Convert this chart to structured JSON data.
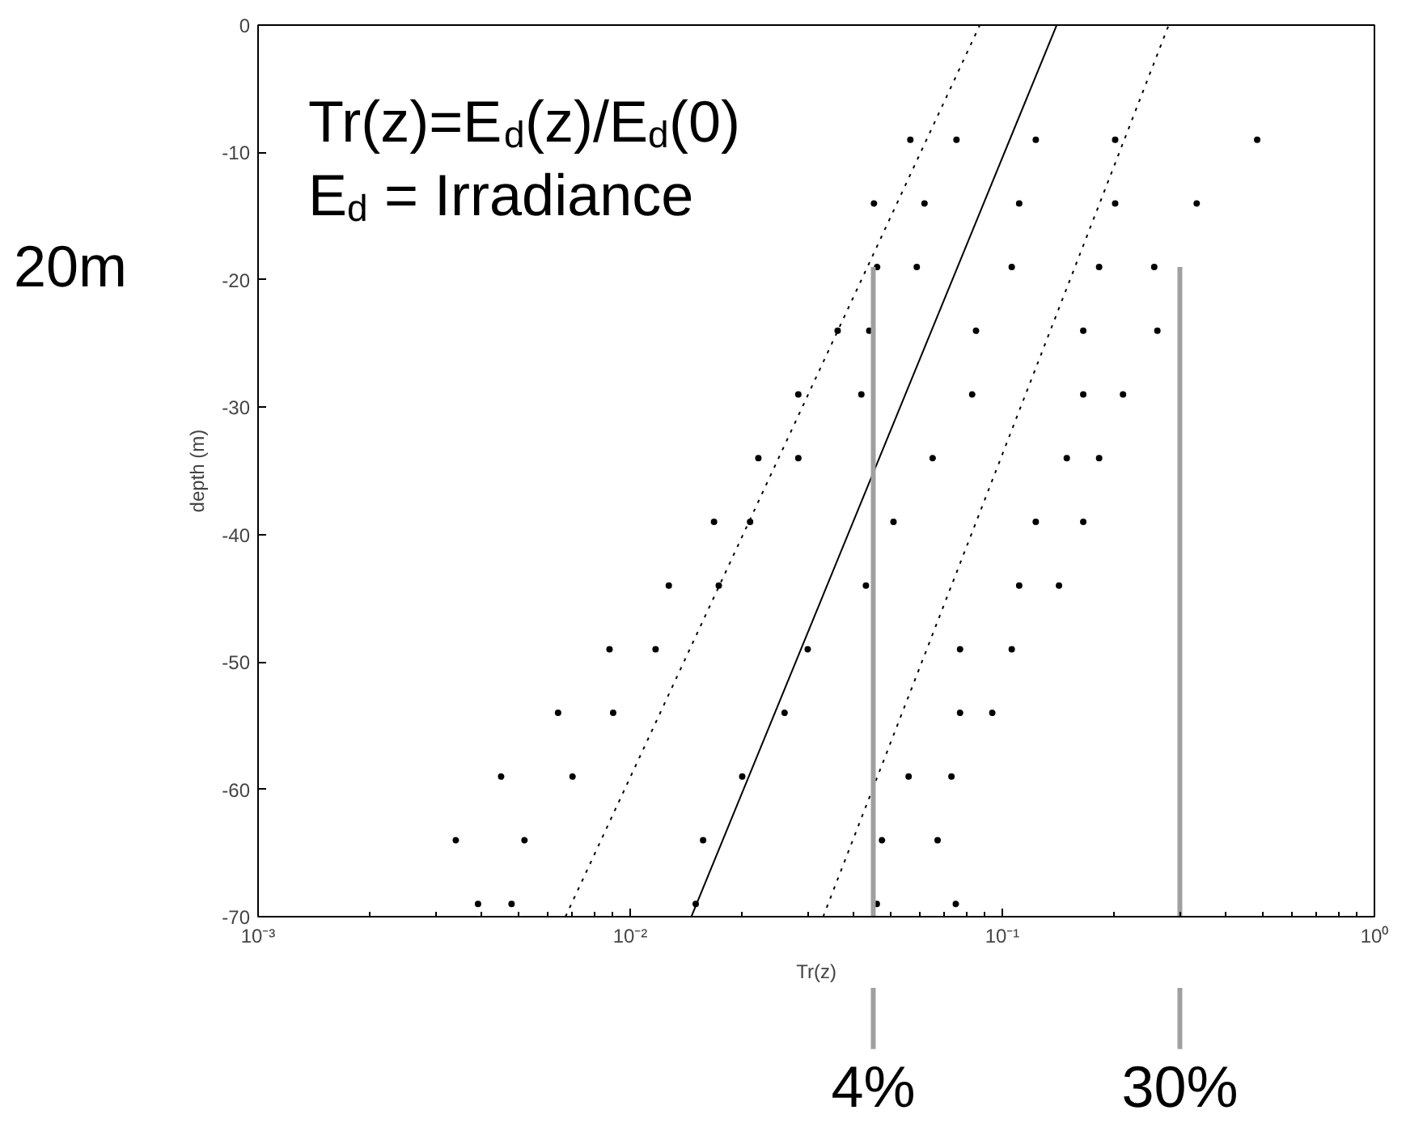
{
  "chart_data": {
    "type": "scatter",
    "xlabel": "Tr(z)",
    "ylabel": "depth (m)",
    "log": "x",
    "marker": "circle",
    "grid": false,
    "legend": "bottom",
    "xlim": [
      0.001,
      1
    ],
    "ylim": [
      -70,
      0
    ],
    "xticks": [
      {
        "value": 0.001,
        "label": "10⁻³"
      },
      {
        "value": 0.01,
        "label": "10⁻²"
      },
      {
        "value": 0.1,
        "label": "10⁻¹"
      },
      {
        "value": 1,
        "label": "10⁰"
      }
    ],
    "yticks": [
      -70,
      -60,
      -50,
      -40,
      -30,
      -20,
      -10,
      0
    ],
    "annotations": [
      "Tr(z)=E$_{d}$(z)/E$_{d}$(0)",
      "E$_{d}$ = Irradiance",
      "20m"
    ],
    "series": [
      {
        "color": "#000000",
        "x": [
          0.0566,
          0.0753,
          0.123,
          0.201,
          0.484,
          0.0452,
          0.0618,
          0.111,
          0.201,
          0.333,
          0.0461,
          0.0589,
          0.106,
          0.182,
          0.256,
          0.0361,
          0.0439,
          0.085,
          0.165,
          0.261,
          0.0283,
          0.0418,
          0.083,
          0.165,
          0.211,
          0.0221,
          0.0283,
          0.065,
          0.149,
          0.182,
          0.0168,
          0.021,
          0.051,
          0.123,
          0.165,
          0.0127,
          0.0173,
          0.043,
          0.111,
          0.142,
          0.0088,
          0.0117,
          0.03,
          0.077,
          0.106,
          0.0064,
          0.009,
          0.026,
          0.077,
          0.094,
          0.0045,
          0.007,
          0.02,
          0.056,
          0.073,
          0.0034,
          0.0052,
          0.0157,
          0.0475,
          0.067,
          0.0039,
          0.0048,
          0.015,
          0.046,
          0.075
        ],
        "values": [
          -9,
          -9,
          -9,
          -9,
          -9,
          -14,
          -14,
          -14,
          -14,
          -14,
          -19,
          -19,
          -19,
          -19,
          -19,
          -24,
          -24,
          -24,
          -24,
          -24,
          -29,
          -29,
          -29,
          -29,
          -29,
          -34,
          -34,
          -34,
          -34,
          -34,
          -39,
          -39,
          -39,
          -39,
          -39,
          -44,
          -44,
          -44,
          -44,
          -44,
          -49,
          -49,
          -49,
          -49,
          -49,
          -54,
          -54,
          -54,
          -54,
          -54,
          -59,
          -59,
          -59,
          -59,
          -59,
          -64,
          -64,
          -64,
          -64,
          -64,
          -69,
          -69,
          -69,
          -69,
          -69
        ]
      },
      {
        "type": "line",
        "marker": "none",
        "line_style": "solid",
        "color": "#000000",
        "x": [
          0.0146,
          0.14
        ],
        "values": [
          -70,
          0
        ]
      },
      {
        "type": "line",
        "marker": "none",
        "line_style": "dotted",
        "color": "#000000",
        "x": [
          0.0067,
          0.087
        ],
        "values": [
          -70,
          0
        ]
      },
      {
        "type": "line",
        "marker": "none",
        "line_style": "dotted",
        "color": "#000000",
        "x": [
          0.033,
          0.28
        ],
        "values": [
          -70,
          0
        ]
      },
      {
        "type": "line",
        "marker": "none",
        "line_style": "solid",
        "name": "4%",
        "color": "#a0a0a0",
        "x": [
          0.045,
          0.045
        ],
        "values": [
          -19,
          -70
        ]
      },
      {
        "type": "line",
        "marker": "none",
        "line_style": "solid",
        "name": "30%",
        "color": "#a0a0a0",
        "x": [
          0.3,
          0.3
        ],
        "values": [
          -19,
          -70
        ]
      }
    ]
  }
}
